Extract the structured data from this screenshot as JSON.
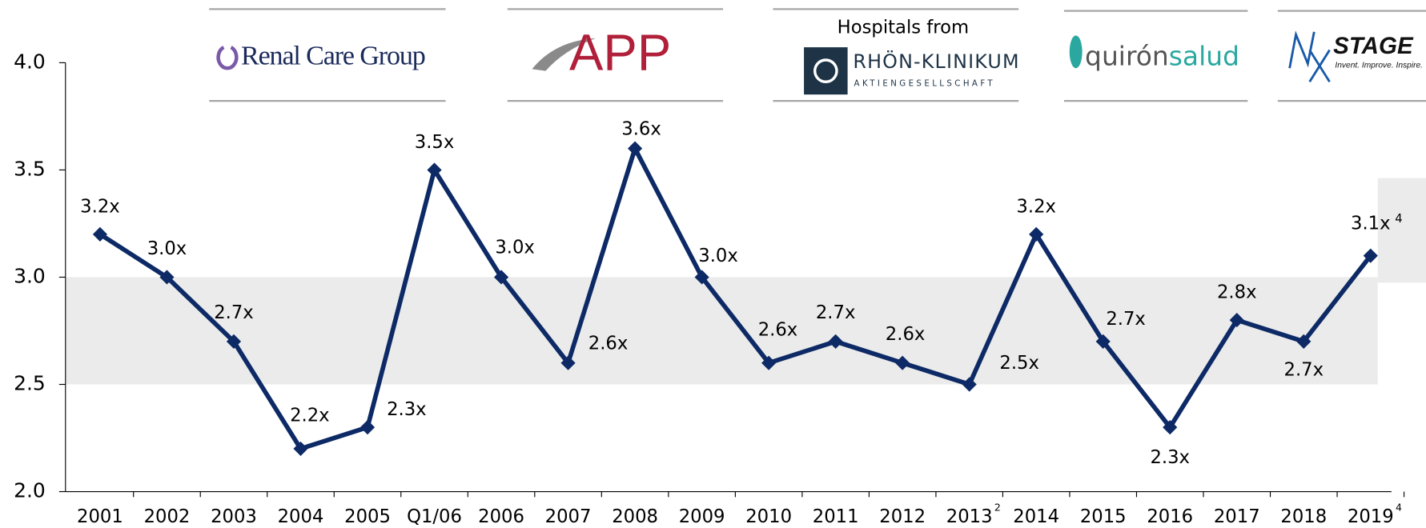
{
  "chart_data": {
    "type": "line",
    "categories": [
      "2001",
      "2002",
      "2003",
      "2004",
      "2005",
      "Q1/06",
      "2006",
      "2007",
      "2008",
      "2009",
      "2010",
      "2011",
      "2012",
      "2013",
      "2014",
      "2015",
      "2016",
      "2017",
      "2018",
      "2019"
    ],
    "category_notes": [
      null,
      null,
      null,
      null,
      null,
      null,
      null,
      null,
      null,
      null,
      null,
      null,
      null,
      "2",
      null,
      null,
      null,
      null,
      null,
      "4"
    ],
    "values": [
      3.2,
      3.0,
      2.7,
      2.2,
      2.3,
      3.5,
      3.0,
      2.6,
      3.6,
      3.0,
      2.6,
      2.7,
      2.6,
      2.5,
      3.2,
      2.7,
      2.3,
      2.8,
      2.7,
      3.1
    ],
    "value_labels": [
      "3.2x",
      "3.0x",
      "2.7x",
      "2.2x",
      "2.3x",
      "3.5x",
      "3.0x",
      "2.6x",
      "3.6x",
      "3.0x",
      "2.6x",
      "2.7x",
      "2.6x",
      "2.5x",
      "3.2x",
      "2.7x",
      "2.3x",
      "2.8x",
      "2.7x",
      "3.1x"
    ],
    "value_label_notes": [
      null,
      null,
      null,
      null,
      null,
      null,
      null,
      null,
      null,
      null,
      null,
      null,
      null,
      null,
      null,
      null,
      null,
      null,
      null,
      "4"
    ],
    "color": "#0d2a66",
    "shaded_range": [
      2.5,
      3.0
    ],
    "ylim": [
      2.0,
      4.0
    ],
    "yticks": [
      {
        "value": 2.0,
        "label": "2.0"
      },
      {
        "value": 2.5,
        "label": "2.5"
      },
      {
        "value": 3.0,
        "label": "3.0"
      },
      {
        "value": 3.5,
        "label": "3.5"
      },
      {
        "value": 4.0,
        "label": "4.0"
      }
    ],
    "logos": [
      [
        "Renal Care Group"
      ],
      [
        "APP"
      ],
      [
        "Hospitals from",
        "RHÖN-KLINIKUM",
        "AKTIENGESELLSCHAFT"
      ],
      [
        "quirón",
        "salud"
      ],
      [
        "STAGE",
        "Invent. Improve. Inspire."
      ]
    ]
  }
}
